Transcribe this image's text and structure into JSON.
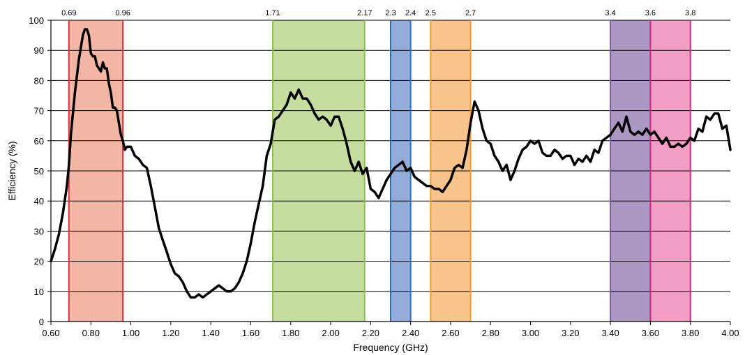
{
  "chart_data": {
    "type": "line",
    "title": "",
    "xlabel": "Frequency (GHz)",
    "ylabel": "Efficiency (%)",
    "xlim": [
      0.6,
      4.0
    ],
    "ylim": [
      0,
      100
    ],
    "x_ticks": [
      "0.60",
      "0.80",
      "1.00",
      "1.20",
      "1.40",
      "1.60",
      "1.80",
      "2.00",
      "2.20",
      "2.40",
      "2.60",
      "2.80",
      "3.00",
      "3.20",
      "3.40",
      "3.60",
      "3.80",
      "4.00"
    ],
    "y_ticks": [
      "0",
      "10",
      "20",
      "30",
      "40",
      "50",
      "60",
      "70",
      "80",
      "90",
      "100"
    ],
    "grid": "horizontal",
    "bands": [
      {
        "start": 0.69,
        "end": 0.96,
        "fill": "#f4b6a4",
        "edge": "#e0303a"
      },
      {
        "start": 1.71,
        "end": 2.17,
        "fill": "#c5dd9e",
        "edge": "#8cc34a"
      },
      {
        "start": 2.3,
        "end": 2.4,
        "fill": "#93acd9",
        "edge": "#2a72bf"
      },
      {
        "start": 2.5,
        "end": 2.7,
        "fill": "#f9c38c",
        "edge": "#f39a30"
      },
      {
        "start": 3.4,
        "end": 3.6,
        "fill": "#ab98c5",
        "edge": "#7a59a0"
      },
      {
        "start": 3.6,
        "end": 3.8,
        "fill": "#f39fc5",
        "edge": "#d8248a"
      }
    ],
    "band_edge_labels": [
      {
        "x": 0.69,
        "label": "0.69"
      },
      {
        "x": 0.96,
        "label": "0.96"
      },
      {
        "x": 1.71,
        "label": "1.71"
      },
      {
        "x": 2.17,
        "label": "2.17"
      },
      {
        "x": 2.3,
        "label": "2.3"
      },
      {
        "x": 2.4,
        "label": "2.4"
      },
      {
        "x": 2.5,
        "label": "2.5"
      },
      {
        "x": 2.7,
        "label": "2.7"
      },
      {
        "x": 3.4,
        "label": "3.4"
      },
      {
        "x": 3.6,
        "label": "3.6"
      },
      {
        "x": 3.8,
        "label": "3.8"
      }
    ],
    "series": [
      {
        "color": "#000000",
        "points": [
          [
            0.6,
            20
          ],
          [
            0.62,
            24
          ],
          [
            0.64,
            29
          ],
          [
            0.66,
            36
          ],
          [
            0.68,
            45
          ],
          [
            0.69,
            52
          ],
          [
            0.7,
            62
          ],
          [
            0.72,
            76
          ],
          [
            0.74,
            87
          ],
          [
            0.76,
            95
          ],
          [
            0.77,
            97
          ],
          [
            0.78,
            97
          ],
          [
            0.79,
            95
          ],
          [
            0.8,
            89
          ],
          [
            0.81,
            88
          ],
          [
            0.82,
            88
          ],
          [
            0.83,
            85
          ],
          [
            0.84,
            84
          ],
          [
            0.85,
            83
          ],
          [
            0.86,
            86
          ],
          [
            0.87,
            84
          ],
          [
            0.88,
            84
          ],
          [
            0.89,
            79
          ],
          [
            0.9,
            76
          ],
          [
            0.91,
            71
          ],
          [
            0.92,
            71
          ],
          [
            0.93,
            70
          ],
          [
            0.94,
            66
          ],
          [
            0.95,
            62
          ],
          [
            0.96,
            60
          ],
          [
            0.97,
            57
          ],
          [
            0.98,
            58
          ],
          [
            1.0,
            58
          ],
          [
            1.02,
            55
          ],
          [
            1.04,
            54
          ],
          [
            1.06,
            52
          ],
          [
            1.08,
            51
          ],
          [
            1.1,
            45
          ],
          [
            1.12,
            38
          ],
          [
            1.14,
            31
          ],
          [
            1.16,
            27
          ],
          [
            1.18,
            23
          ],
          [
            1.2,
            19
          ],
          [
            1.22,
            16
          ],
          [
            1.24,
            15
          ],
          [
            1.26,
            13
          ],
          [
            1.28,
            10
          ],
          [
            1.3,
            8
          ],
          [
            1.32,
            8
          ],
          [
            1.34,
            9
          ],
          [
            1.36,
            8
          ],
          [
            1.38,
            9
          ],
          [
            1.4,
            10
          ],
          [
            1.42,
            11
          ],
          [
            1.44,
            12
          ],
          [
            1.46,
            11
          ],
          [
            1.48,
            10
          ],
          [
            1.5,
            10
          ],
          [
            1.52,
            11
          ],
          [
            1.54,
            13
          ],
          [
            1.56,
            16
          ],
          [
            1.58,
            20
          ],
          [
            1.6,
            26
          ],
          [
            1.62,
            33
          ],
          [
            1.64,
            39
          ],
          [
            1.66,
            45
          ],
          [
            1.68,
            55
          ],
          [
            1.7,
            59
          ],
          [
            1.71,
            63
          ],
          [
            1.72,
            67
          ],
          [
            1.74,
            68
          ],
          [
            1.76,
            70
          ],
          [
            1.78,
            72
          ],
          [
            1.8,
            76
          ],
          [
            1.82,
            74
          ],
          [
            1.84,
            77
          ],
          [
            1.86,
            74
          ],
          [
            1.88,
            74
          ],
          [
            1.9,
            72
          ],
          [
            1.92,
            69
          ],
          [
            1.94,
            67
          ],
          [
            1.96,
            68
          ],
          [
            1.98,
            67
          ],
          [
            2.0,
            65
          ],
          [
            2.02,
            68
          ],
          [
            2.04,
            68
          ],
          [
            2.06,
            64
          ],
          [
            2.08,
            59
          ],
          [
            2.1,
            53
          ],
          [
            2.12,
            50
          ],
          [
            2.14,
            53
          ],
          [
            2.16,
            49
          ],
          [
            2.18,
            51
          ],
          [
            2.2,
            44
          ],
          [
            2.22,
            43
          ],
          [
            2.24,
            41
          ],
          [
            2.26,
            44
          ],
          [
            2.28,
            47
          ],
          [
            2.3,
            49
          ],
          [
            2.32,
            51
          ],
          [
            2.34,
            52
          ],
          [
            2.36,
            53
          ],
          [
            2.38,
            50
          ],
          [
            2.4,
            51
          ],
          [
            2.42,
            48
          ],
          [
            2.44,
            47
          ],
          [
            2.46,
            46
          ],
          [
            2.48,
            45
          ],
          [
            2.5,
            45
          ],
          [
            2.52,
            44
          ],
          [
            2.54,
            44
          ],
          [
            2.56,
            43
          ],
          [
            2.58,
            45
          ],
          [
            2.6,
            47
          ],
          [
            2.62,
            51
          ],
          [
            2.64,
            52
          ],
          [
            2.66,
            51
          ],
          [
            2.68,
            57
          ],
          [
            2.7,
            66
          ],
          [
            2.72,
            73
          ],
          [
            2.74,
            70
          ],
          [
            2.76,
            64
          ],
          [
            2.78,
            60
          ],
          [
            2.8,
            59
          ],
          [
            2.82,
            55
          ],
          [
            2.84,
            53
          ],
          [
            2.86,
            50
          ],
          [
            2.88,
            52
          ],
          [
            2.9,
            47
          ],
          [
            2.92,
            50
          ],
          [
            2.94,
            54
          ],
          [
            2.96,
            57
          ],
          [
            2.98,
            58
          ],
          [
            3.0,
            60
          ],
          [
            3.02,
            59
          ],
          [
            3.04,
            60
          ],
          [
            3.06,
            56
          ],
          [
            3.08,
            55
          ],
          [
            3.1,
            55
          ],
          [
            3.12,
            57
          ],
          [
            3.14,
            56
          ],
          [
            3.16,
            54
          ],
          [
            3.18,
            55
          ],
          [
            3.2,
            55
          ],
          [
            3.22,
            52
          ],
          [
            3.24,
            54
          ],
          [
            3.26,
            53
          ],
          [
            3.28,
            55
          ],
          [
            3.3,
            53
          ],
          [
            3.32,
            57
          ],
          [
            3.34,
            56
          ],
          [
            3.36,
            60
          ],
          [
            3.38,
            61
          ],
          [
            3.4,
            62
          ],
          [
            3.42,
            64
          ],
          [
            3.44,
            66
          ],
          [
            3.46,
            63
          ],
          [
            3.48,
            68
          ],
          [
            3.5,
            63
          ],
          [
            3.52,
            62
          ],
          [
            3.54,
            63
          ],
          [
            3.56,
            62
          ],
          [
            3.58,
            64
          ],
          [
            3.6,
            62
          ],
          [
            3.62,
            63
          ],
          [
            3.64,
            61
          ],
          [
            3.66,
            59
          ],
          [
            3.68,
            61
          ],
          [
            3.7,
            58
          ],
          [
            3.72,
            58
          ],
          [
            3.74,
            59
          ],
          [
            3.76,
            58
          ],
          [
            3.78,
            59
          ],
          [
            3.8,
            61
          ],
          [
            3.82,
            60
          ],
          [
            3.84,
            64
          ],
          [
            3.86,
            63
          ],
          [
            3.88,
            68
          ],
          [
            3.9,
            67
          ],
          [
            3.92,
            69
          ],
          [
            3.94,
            69
          ],
          [
            3.96,
            64
          ],
          [
            3.98,
            65
          ],
          [
            4.0,
            57
          ]
        ]
      }
    ]
  }
}
